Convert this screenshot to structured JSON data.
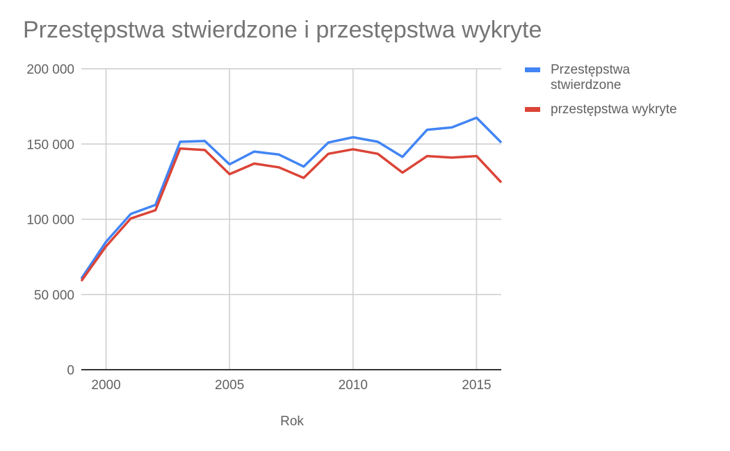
{
  "chart_data": {
    "type": "line",
    "title": "Przestępstwa stwierdzone i przestępstwa wykryte",
    "xlabel": "Rok",
    "ylabel": "",
    "xlim": [
      1999,
      2016
    ],
    "ylim": [
      0,
      200000
    ],
    "x_ticks": [
      {
        "value": 2000,
        "label": "2000"
      },
      {
        "value": 2005,
        "label": "2005"
      },
      {
        "value": 2010,
        "label": "2010"
      },
      {
        "value": 2015,
        "label": "2015"
      }
    ],
    "y_ticks": [
      {
        "value": 0,
        "label": "0"
      },
      {
        "value": 50000,
        "label": "50 000"
      },
      {
        "value": 100000,
        "label": "100 000"
      },
      {
        "value": 150000,
        "label": "150 000"
      },
      {
        "value": 200000,
        "label": "200 000"
      }
    ],
    "grid": true,
    "legend_position": "right",
    "x": [
      1999,
      2000,
      2001,
      2002,
      2003,
      2004,
      2005,
      2006,
      2007,
      2008,
      2009,
      2010,
      2011,
      2012,
      2013,
      2014,
      2015,
      2016
    ],
    "series": [
      {
        "name": "Przestępstwa stwierdzone",
        "legend_lines": [
          "Przestępstwa",
          "stwierdzone"
        ],
        "color": "#4285f4",
        "values": [
          60500,
          85000,
          103500,
          109500,
          151500,
          152000,
          136500,
          145000,
          143000,
          135000,
          151000,
          154500,
          151500,
          141500,
          159500,
          161000,
          167500,
          151000
        ]
      },
      {
        "name": "przestępstwa wykryte",
        "legend_lines": [
          "przestępstwa wykryte"
        ],
        "color": "#db4437",
        "values": [
          59000,
          82000,
          100500,
          106000,
          147000,
          146000,
          130000,
          137000,
          134500,
          127500,
          143500,
          146500,
          143500,
          131000,
          142000,
          141000,
          142000,
          124500
        ]
      }
    ]
  }
}
